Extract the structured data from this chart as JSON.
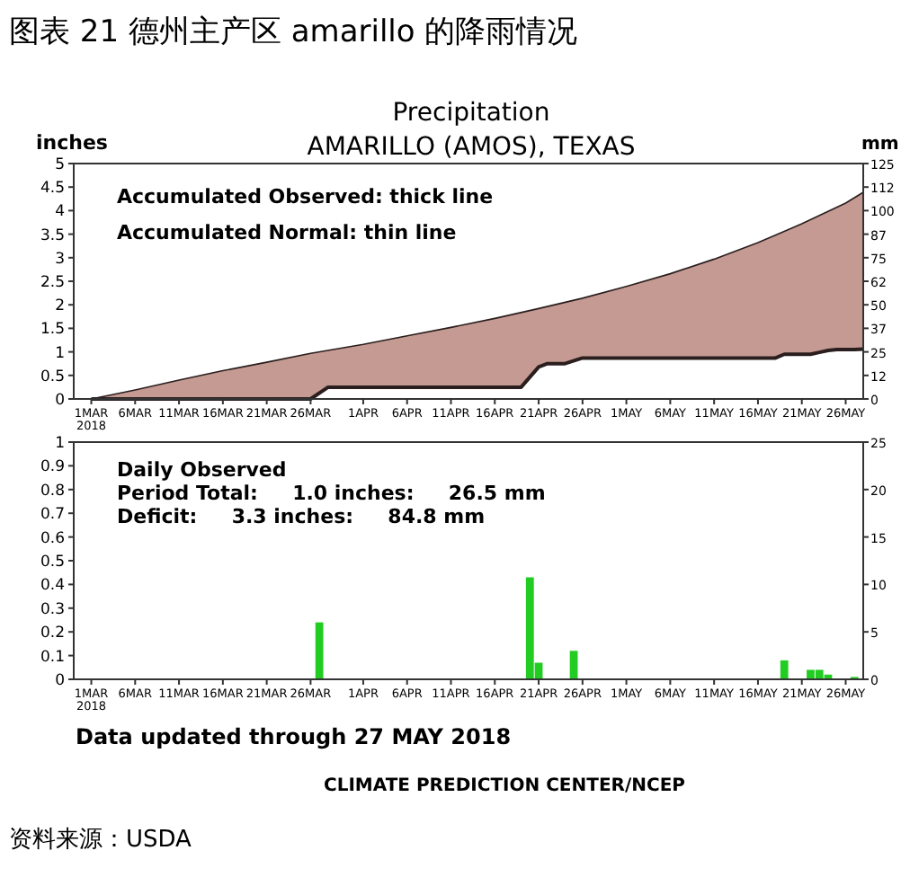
{
  "chart_data": [
    {
      "type": "line",
      "title": "Precipitation",
      "subtitle": "AMARILLO (AMOS), TEXAS",
      "ylabel": "inches",
      "y2label": "mm",
      "annotations": [
        "图表 21 德州主产区 amarillo 的降雨情况",
        "Accumulated Observed: thick line",
        "Accumulated Normal: thin line"
      ],
      "xlim": [
        "2018-02-27",
        "2018-05-28"
      ],
      "xticks": [
        {
          "value": "2018-03-01",
          "label": "1MAR 2018"
        },
        {
          "value": "2018-03-06",
          "label": "6MAR"
        },
        {
          "value": "2018-03-11",
          "label": "11MAR"
        },
        {
          "value": "2018-03-16",
          "label": "16MAR"
        },
        {
          "value": "2018-03-21",
          "label": "21MAR"
        },
        {
          "value": "2018-03-26",
          "label": "26MAR"
        },
        {
          "value": "2018-04-01",
          "label": "1APR"
        },
        {
          "value": "2018-04-06",
          "label": "6APR"
        },
        {
          "value": "2018-04-11",
          "label": "11APR"
        },
        {
          "value": "2018-04-16",
          "label": "16APR"
        },
        {
          "value": "2018-04-21",
          "label": "21APR"
        },
        {
          "value": "2018-04-26",
          "label": "26APR"
        },
        {
          "value": "2018-05-01",
          "label": "1MAY"
        },
        {
          "value": "2018-05-06",
          "label": "6MAY"
        },
        {
          "value": "2018-05-11",
          "label": "11MAY"
        },
        {
          "value": "2018-05-16",
          "label": "16MAY"
        },
        {
          "value": "2018-05-21",
          "label": "21MAY"
        },
        {
          "value": "2018-05-26",
          "label": "26MAY"
        }
      ],
      "ylim": [
        0,
        5
      ],
      "yticks": [
        0,
        0.5,
        1,
        1.5,
        2,
        2.5,
        3,
        3.5,
        4,
        4.5,
        5
      ],
      "y2lim": [
        0,
        125
      ],
      "y2ticks": [
        0,
        {
          "value": 12.5,
          "label": "12"
        },
        25,
        {
          "value": 37.5,
          "label": "37"
        },
        50,
        {
          "value": 62.5,
          "label": "62"
        },
        75,
        {
          "value": 87.5,
          "label": "87"
        },
        100,
        {
          "value": 112.5,
          "label": "112"
        },
        125
      ],
      "series": [
        {
          "type": "area",
          "color": "#c49a92",
          "x": [
            "2018-03-01",
            "2018-03-06",
            "2018-03-11",
            "2018-03-16",
            "2018-03-21",
            "2018-03-26",
            "2018-04-01",
            "2018-04-06",
            "2018-04-11",
            "2018-04-16",
            "2018-04-21",
            "2018-04-26",
            "2018-05-01",
            "2018-05-06",
            "2018-05-11",
            "2018-05-16",
            "2018-05-21",
            "2018-05-26",
            "2018-05-28"
          ],
          "values": [
            0,
            0.19,
            0.4,
            0.6,
            0.78,
            0.97,
            1.16,
            1.34,
            1.52,
            1.71,
            1.92,
            2.14,
            2.39,
            2.66,
            2.97,
            3.32,
            3.72,
            4.16,
            4.39
          ]
        },
        {
          "type": "area",
          "color": "#ffffff",
          "x": [
            "2018-03-01",
            "2018-03-26",
            "2018-03-28",
            "2018-04-19",
            "2018-04-21",
            "2018-04-22",
            "2018-04-24",
            "2018-04-26",
            "2018-05-18",
            "2018-05-19",
            "2018-05-22",
            "2018-05-23",
            "2018-05-24",
            "2018-05-25",
            "2018-05-27",
            "2018-05-28"
          ],
          "values": [
            0,
            0,
            0.25,
            0.25,
            0.68,
            0.75,
            0.75,
            0.87,
            0.87,
            0.95,
            0.95,
            0.99,
            1.03,
            1.05,
            1.05,
            1.06
          ]
        }
      ]
    },
    {
      "type": "bar",
      "y2label": null,
      "annotations": [
        "Daily Observed",
        "Period Total:     1.0 inches:     26.5 mm",
        "Deficit:     3.3 inches:     84.8 mm",
        "Data updated through 27 MAY 2018",
        "CLIMATE PREDICTION CENTER/NCEP",
        "资料来源：USDA"
      ],
      "xlim": [
        "2018-02-27",
        "2018-05-28"
      ],
      "xticks": [
        {
          "value": "2018-03-01",
          "label": "1MAR 2018"
        },
        {
          "value": "2018-03-06",
          "label": "6MAR"
        },
        {
          "value": "2018-03-11",
          "label": "11MAR"
        },
        {
          "value": "2018-03-16",
          "label": "16MAR"
        },
        {
          "value": "2018-03-21",
          "label": "21MAR"
        },
        {
          "value": "2018-03-26",
          "label": "26MAR"
        },
        {
          "value": "2018-04-01",
          "label": "1APR"
        },
        {
          "value": "2018-04-06",
          "label": "6APR"
        },
        {
          "value": "2018-04-11",
          "label": "11APR"
        },
        {
          "value": "2018-04-16",
          "label": "16APR"
        },
        {
          "value": "2018-04-21",
          "label": "21APR"
        },
        {
          "value": "2018-04-26",
          "label": "26APR"
        },
        {
          "value": "2018-05-01",
          "label": "1MAY"
        },
        {
          "value": "2018-05-06",
          "label": "6MAY"
        },
        {
          "value": "2018-05-11",
          "label": "11MAY"
        },
        {
          "value": "2018-05-16",
          "label": "16MAY"
        },
        {
          "value": "2018-05-21",
          "label": "21MAY"
        },
        {
          "value": "2018-05-26",
          "label": "26MAY"
        }
      ],
      "ylim": [
        0,
        1
      ],
      "yticks": [
        0,
        0.1,
        0.2,
        0.3,
        0.4,
        0.5,
        0.6,
        0.7,
        0.8,
        0.9,
        1
      ],
      "y2lim": [
        0,
        25
      ],
      "y2ticks": [
        0,
        5,
        10,
        15,
        20,
        25
      ],
      "x": [
        "2018-03-27",
        "2018-04-20",
        "2018-04-21",
        "2018-04-25",
        "2018-05-19",
        "2018-05-22",
        "2018-05-23",
        "2018-05-24",
        "2018-05-27"
      ],
      "values": [
        0.24,
        0.43,
        0.07,
        0.12,
        0.08,
        0.04,
        0.04,
        0.02,
        0.01
      ],
      "color": "#22cc22"
    }
  ]
}
